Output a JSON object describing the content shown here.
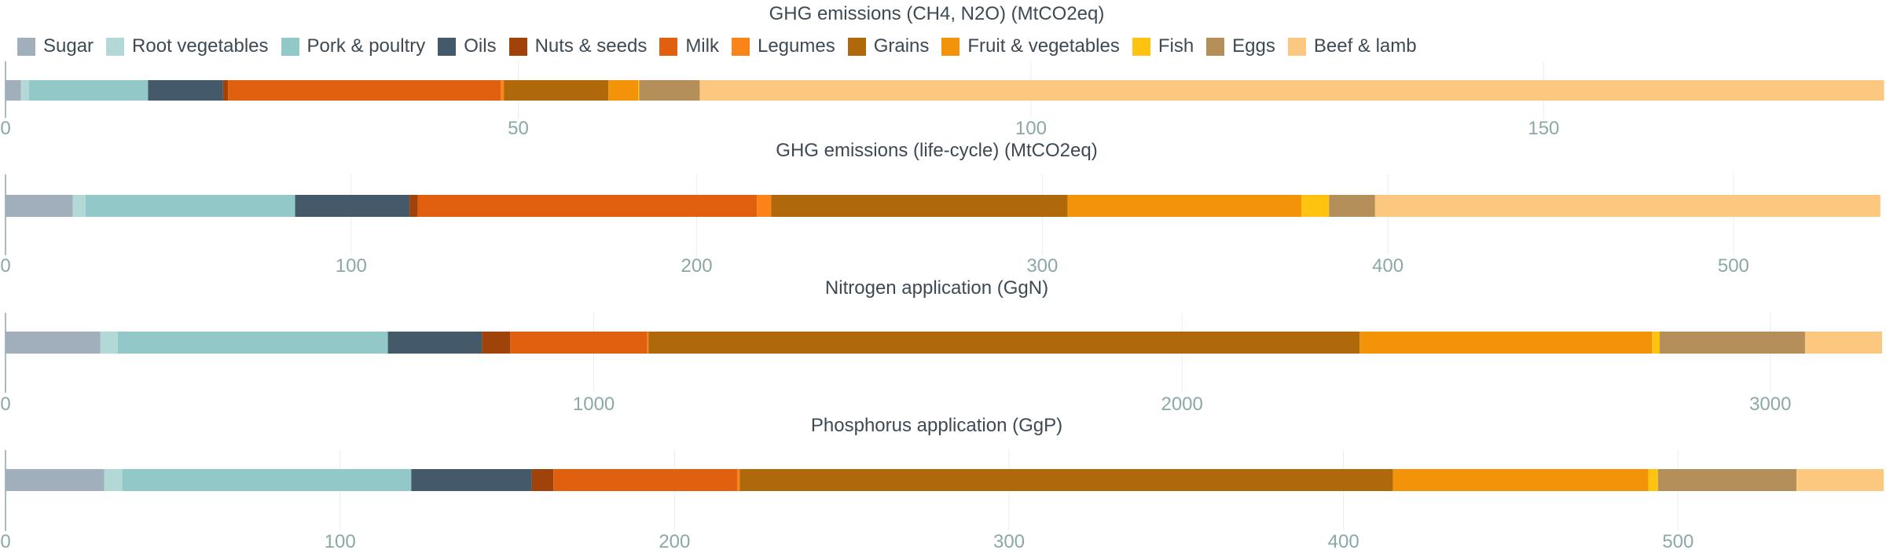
{
  "legend": [
    {
      "name": "Sugar",
      "color": "#a1aebb"
    },
    {
      "name": "Root vegetables",
      "color": "#b3d9d6"
    },
    {
      "name": "Pork & poultry",
      "color": "#92c9c8"
    },
    {
      "name": "Oils",
      "color": "#445a6b"
    },
    {
      "name": "Nuts & seeds",
      "color": "#a0430a"
    },
    {
      "name": "Milk",
      "color": "#e0600f"
    },
    {
      "name": "Legumes",
      "color": "#fb8419"
    },
    {
      "name": "Grains",
      "color": "#b0690a"
    },
    {
      "name": "Fruit & vegetables",
      "color": "#f39308"
    },
    {
      "name": "Fish",
      "color": "#fec30e"
    },
    {
      "name": "Eggs",
      "color": "#b58f59"
    },
    {
      "name": "Beef & lamb",
      "color": "#fcc880"
    }
  ],
  "chart_data": [
    {
      "type": "bar",
      "orientation": "horizontal",
      "stacked": true,
      "title": "GHG emissions (CH4, N2O) (MtCO2eq)",
      "xlim": [
        0,
        183
      ],
      "ticks": [
        0,
        50,
        100,
        150
      ],
      "tick_labels": [
        "0",
        "50",
        "100",
        "150"
      ],
      "series": [
        {
          "name": "Sugar",
          "value": 1.5
        },
        {
          "name": "Root vegetables",
          "value": 0.8
        },
        {
          "name": "Pork & poultry",
          "value": 11.6
        },
        {
          "name": "Oils",
          "value": 7.3
        },
        {
          "name": "Nuts & seeds",
          "value": 0.5
        },
        {
          "name": "Milk",
          "value": 26.6
        },
        {
          "name": "Legumes",
          "value": 0.3
        },
        {
          "name": "Grains",
          "value": 10.2
        },
        {
          "name": "Fruit & vegetables",
          "value": 2.9
        },
        {
          "name": "Fish",
          "value": 0.1
        },
        {
          "name": "Eggs",
          "value": 5.9
        },
        {
          "name": "Beef & lamb",
          "value": 115.5
        }
      ]
    },
    {
      "type": "bar",
      "orientation": "horizontal",
      "stacked": true,
      "title": "GHG emissions (life-cycle) (MtCO2eq)",
      "xlim": [
        0,
        543
      ],
      "ticks": [
        0,
        100,
        200,
        300,
        400,
        500
      ],
      "tick_labels": [
        "0",
        "100",
        "200",
        "300",
        "400",
        "500"
      ],
      "series": [
        {
          "name": "Sugar",
          "value": 19.5
        },
        {
          "name": "Root vegetables",
          "value": 3.7
        },
        {
          "name": "Pork & poultry",
          "value": 60.6
        },
        {
          "name": "Oils",
          "value": 33.1
        },
        {
          "name": "Nuts & seeds",
          "value": 2.4
        },
        {
          "name": "Milk",
          "value": 98.1
        },
        {
          "name": "Legumes",
          "value": 4.2
        },
        {
          "name": "Grains",
          "value": 85.7
        },
        {
          "name": "Fruit & vegetables",
          "value": 67.7
        },
        {
          "name": "Fish",
          "value": 8.0
        },
        {
          "name": "Eggs",
          "value": 13.3
        },
        {
          "name": "Beef & lamb",
          "value": 146.2
        }
      ]
    },
    {
      "type": "bar",
      "orientation": "horizontal",
      "stacked": true,
      "title": "Nitrogen application (GgN)",
      "xlim": [
        0,
        3190
      ],
      "ticks": [
        0,
        1000,
        2000,
        3000
      ],
      "tick_labels": [
        "0",
        "1000",
        "2000",
        "3000"
      ],
      "series": [
        {
          "name": "Sugar",
          "value": 161
        },
        {
          "name": "Root vegetables",
          "value": 30
        },
        {
          "name": "Pork & poultry",
          "value": 459
        },
        {
          "name": "Oils",
          "value": 160
        },
        {
          "name": "Nuts & seeds",
          "value": 48
        },
        {
          "name": "Milk",
          "value": 233
        },
        {
          "name": "Legumes",
          "value": 2
        },
        {
          "name": "Grains",
          "value": 1209
        },
        {
          "name": "Fruit & vegetables",
          "value": 497
        },
        {
          "name": "Fish",
          "value": 13
        },
        {
          "name": "Eggs",
          "value": 247
        },
        {
          "name": "Beef & lamb",
          "value": 131
        }
      ]
    },
    {
      "type": "bar",
      "orientation": "horizontal",
      "stacked": true,
      "title": "Phosphorus application (GgP)",
      "xlim": [
        0,
        561
      ],
      "ticks": [
        0,
        100,
        200,
        300,
        400,
        500
      ],
      "tick_labels": [
        "0",
        "100",
        "200",
        "300",
        "400",
        "500"
      ],
      "series": [
        {
          "name": "Sugar",
          "value": 29.5
        },
        {
          "name": "Root vegetables",
          "value": 5.4
        },
        {
          "name": "Pork & poultry",
          "value": 86.4
        },
        {
          "name": "Oils",
          "value": 36.0
        },
        {
          "name": "Nuts & seeds",
          "value": 6.5
        },
        {
          "name": "Milk",
          "value": 55.0
        },
        {
          "name": "Legumes",
          "value": 0.7
        },
        {
          "name": "Grains",
          "value": 195.3
        },
        {
          "name": "Fruit & vegetables",
          "value": 76.3
        },
        {
          "name": "Fish",
          "value": 2.9
        },
        {
          "name": "Eggs",
          "value": 41.4
        },
        {
          "name": "Beef & lamb",
          "value": 26.1
        }
      ]
    }
  ]
}
